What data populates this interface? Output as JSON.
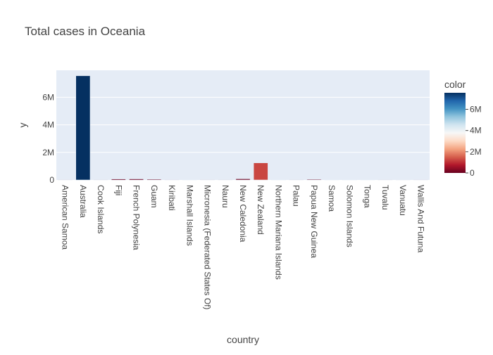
{
  "chart_data": {
    "type": "bar",
    "title": "Total cases in Oceania",
    "xlabel": "country",
    "ylabel": "y",
    "categories": [
      "American Samoa",
      "Australia",
      "Cook Islands",
      "Fiji",
      "French Polynesia",
      "Guam",
      "Kiribati",
      "Marshall Islands",
      "Micronesia (Federated States Of)",
      "Nauru",
      "New Caledonia",
      "New Zealand",
      "Northern Mariana Islands",
      "Palau",
      "Papua New Guinea",
      "Samoa",
      "Solomon Islands",
      "Tonga",
      "Tuvalu",
      "Vanuatu",
      "Wallis And Futuna"
    ],
    "values": [
      8300,
      7560000,
      7000,
      68500,
      73500,
      51000,
      3400,
      15500,
      26500,
      5400,
      80000,
      1240000,
      13800,
      6000,
      46800,
      17000,
      24600,
      16800,
      2800,
      12000,
      3400
    ],
    "ylim": [
      0,
      7960000
    ],
    "yticks": [
      0,
      2000000,
      4000000,
      6000000
    ],
    "ytick_labels": [
      "0",
      "2M",
      "4M",
      "6M"
    ],
    "grid": true,
    "legend": {
      "title": "color",
      "placement": "right",
      "type": "colorbar",
      "colorscale": "RdBu",
      "range": [
        0,
        7560000
      ],
      "ticks": [
        0,
        2000000,
        4000000,
        6000000
      ],
      "tick_labels": [
        "0",
        "2M",
        "4M",
        "6M"
      ]
    },
    "colors": {
      "plot_background": "#e5ecf6",
      "grid": "#ffffff",
      "scale": [
        "#67001f",
        "#b2182b",
        "#d6604d",
        "#f4a582",
        "#fddbc7",
        "#f7f7f7",
        "#d1e5f0",
        "#92c5de",
        "#4393c3",
        "#2166ac",
        "#053061"
      ]
    }
  }
}
